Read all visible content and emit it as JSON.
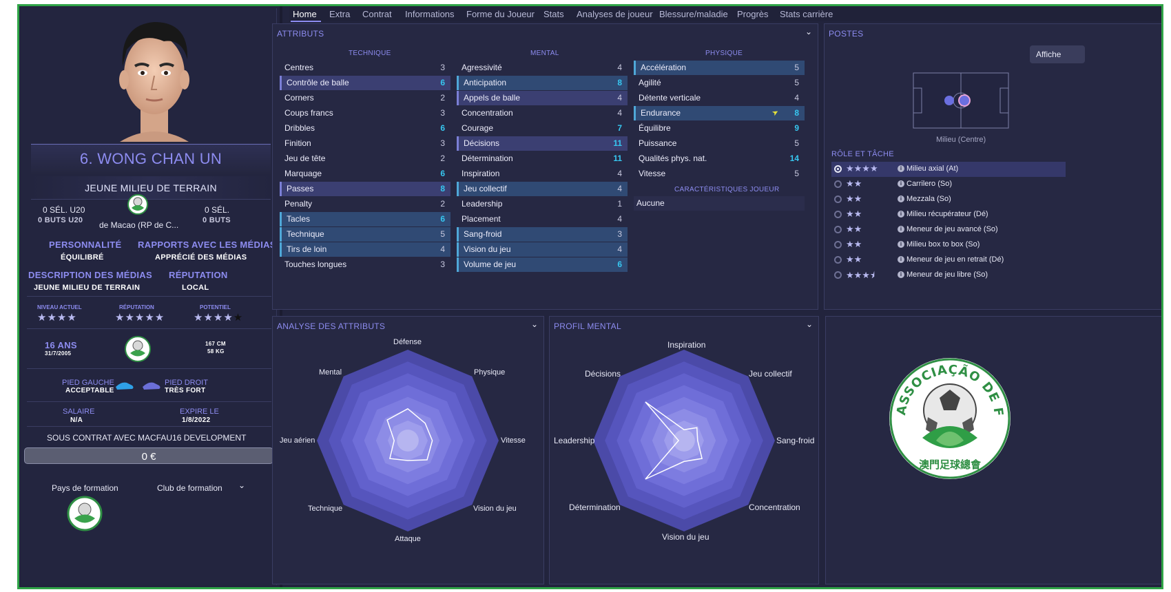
{
  "player": {
    "name": "6. WONG CHAN UN",
    "position_label": "JEUNE MILIEU DE TERRAIN",
    "u20_caps": "0 SÉL. U20",
    "u20_goals": "0 BUTS U20",
    "caps": "0 SÉL.",
    "goals": "0 BUTS",
    "nation": "de Macao (RP de C...",
    "personality_label": "PERSONNALITÉ",
    "personality": "ÉQUILIBRÉ",
    "media_label": "RAPPORTS AVEC LES MÉDIAS",
    "media": "APPRÉCIÉ DES MÉDIAS",
    "media_desc_label": "DESCRIPTION DES MÉDIAS",
    "media_desc": "JEUNE MILIEU DE TERRAIN",
    "reputation_label": "RÉPUTATION",
    "reputation": "LOCAL",
    "ca_label": "NIVEAU ACTUEL",
    "rep_stars_label": "RÉPUTATION",
    "pa_label": "POTENTIEL",
    "ca_stars": "★★★★",
    "rep_stars": "★★★★★",
    "pa_stars": "★★★★",
    "pa_extra": "★",
    "age": "16 ANS",
    "dob": "31/7/2005",
    "height": "167 CM",
    "weight": "58 KG",
    "left_foot_label": "PIED GAUCHE",
    "left_foot": "ACCEPTABLE",
    "right_foot_label": "PIED DROIT",
    "right_foot": "TRÈS FORT",
    "wage_label": "SALAIRE",
    "wage": "N/A",
    "expires_label": "EXPIRE LE",
    "expires": "1/8/2022",
    "contract": "SOUS CONTRAT AVEC MACFAU16 DEVELOPMENT",
    "value": "0 €",
    "training_nation_label": "Pays de formation",
    "training_club_label": "Club de formation"
  },
  "tabs": [
    "Home",
    "Extra",
    "Contrat",
    "Informations",
    "Forme du Joueur",
    "Stats",
    "Analyses de joueur",
    "Blessure/maladie",
    "Progrès",
    "Stats carrière"
  ],
  "attributes": {
    "title": "ATTRIBUTS",
    "technique_label": "TECHNIQUE",
    "mental_label": "MENTAL",
    "physique_label": "PHYSIQUE",
    "technique": [
      {
        "name": "Centres",
        "value": "3"
      },
      {
        "name": "Contrôle de balle",
        "value": "6"
      },
      {
        "name": "Corners",
        "value": "2"
      },
      {
        "name": "Coups francs",
        "value": "3"
      },
      {
        "name": "Dribbles",
        "value": "6"
      },
      {
        "name": "Finition",
        "value": "3"
      },
      {
        "name": "Jeu de tête",
        "value": "2"
      },
      {
        "name": "Marquage",
        "value": "6"
      },
      {
        "name": "Passes",
        "value": "8"
      },
      {
        "name": "Penalty",
        "value": "2"
      },
      {
        "name": "Tacles",
        "value": "6"
      },
      {
        "name": "Technique",
        "value": "5"
      },
      {
        "name": "Tirs de loin",
        "value": "4"
      },
      {
        "name": "Touches longues",
        "value": "3"
      }
    ],
    "mental": [
      {
        "name": "Agressivité",
        "value": "4"
      },
      {
        "name": "Anticipation",
        "value": "8"
      },
      {
        "name": "Appels de balle",
        "value": "4"
      },
      {
        "name": "Concentration",
        "value": "4"
      },
      {
        "name": "Courage",
        "value": "7"
      },
      {
        "name": "Décisions",
        "value": "11"
      },
      {
        "name": "Détermination",
        "value": "11"
      },
      {
        "name": "Inspiration",
        "value": "4"
      },
      {
        "name": "Jeu collectif",
        "value": "4"
      },
      {
        "name": "Leadership",
        "value": "1"
      },
      {
        "name": "Placement",
        "value": "4"
      },
      {
        "name": "Sang-froid",
        "value": "3"
      },
      {
        "name": "Vision du jeu",
        "value": "4"
      },
      {
        "name": "Volume de jeu",
        "value": "6"
      }
    ],
    "physique": [
      {
        "name": "Accélération",
        "value": "5"
      },
      {
        "name": "Agilité",
        "value": "5"
      },
      {
        "name": "Détente verticale",
        "value": "4"
      },
      {
        "name": "Endurance",
        "value": "8"
      },
      {
        "name": "Équilibre",
        "value": "9"
      },
      {
        "name": "Puissance",
        "value": "5"
      },
      {
        "name": "Qualités phys. nat.",
        "value": "14"
      },
      {
        "name": "Vitesse",
        "value": "5"
      }
    ],
    "traits_label": "CARACTÉRISTIQUES JOUEUR",
    "traits": "Aucune"
  },
  "positions": {
    "title": "POSTES",
    "show_button": "Affiche",
    "position_name": "Milieu (Centre)",
    "roles_label": "RÔLE ET TÂCHE",
    "roles": [
      {
        "stars": "★★★★",
        "name": "Milieu axial (At)"
      },
      {
        "stars": "★★",
        "name": "Carrilero (So)"
      },
      {
        "stars": "★★",
        "name": "Mezzala (So)"
      },
      {
        "stars": "★★",
        "name": "Milieu récupérateur (Dé)"
      },
      {
        "stars": "★★",
        "name": "Meneur de jeu avancé (So)"
      },
      {
        "stars": "★★",
        "name": "Milieu box to box (So)"
      },
      {
        "stars": "★★",
        "name": "Meneur de jeu en retrait (Dé)"
      },
      {
        "stars": "★★★⯨",
        "name": "Meneur de jeu libre (So)"
      }
    ]
  },
  "attr_analysis": {
    "title": "ANALYSE DES ATTRIBUTS",
    "axes": [
      "Défense",
      "Physique",
      "Vitesse",
      "Vision du jeu",
      "Attaque",
      "Technique",
      "Jeu aérien",
      "Mental"
    ]
  },
  "mental_profile": {
    "title": "PROFIL MENTAL",
    "axes": [
      "Inspiration",
      "Jeu collectif",
      "Sang-froid",
      "Concentration",
      "Vision du jeu",
      "Détermination",
      "Leadership",
      "Décisions"
    ]
  },
  "club": {
    "crest_text": "ASSOCIAÇÃO DE FUTEBOL DE MACAU",
    "crest_cn": "澳門足球總會"
  },
  "colors": {
    "accent": "#8d8cf0",
    "highlight_value": "#37c7f0",
    "border": "#2fa447"
  }
}
